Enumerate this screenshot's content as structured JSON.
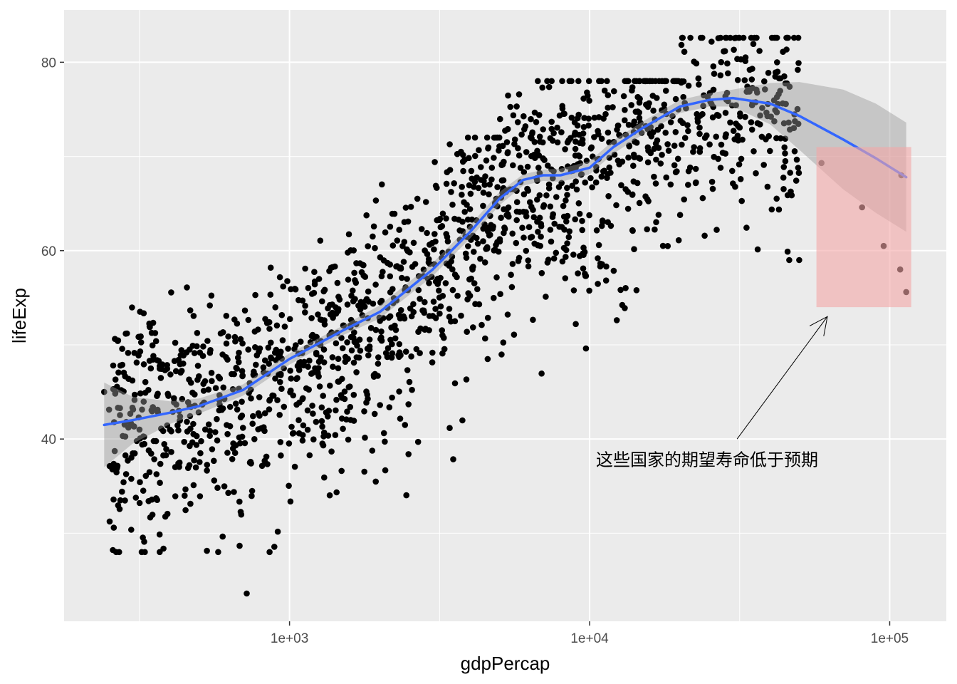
{
  "chart_data": {
    "type": "scatter",
    "title": "",
    "xlabel": "gdpPercap",
    "ylabel": "lifeExp",
    "x_scale": "log10",
    "xlim": [
      241.2,
      113523
    ],
    "ylim": [
      23.6,
      82.6
    ],
    "x_ticks": [
      {
        "value": 1000,
        "label": "1e+03"
      },
      {
        "value": 10000,
        "label": "1e+04"
      },
      {
        "value": 100000,
        "label": "1e+05"
      }
    ],
    "y_ticks": [
      {
        "value": 40,
        "label": "40"
      },
      {
        "value": 60,
        "label": "60"
      },
      {
        "value": 80,
        "label": "80"
      }
    ],
    "grid": true,
    "background": "#ebebeb",
    "colors": {
      "points": "#000000",
      "smooth_line": "#3366ff",
      "ribbon": "#999999",
      "highlight": "#f4a6a6"
    },
    "points_note": "gapminder scatter: 1704 points, approximated by the cluster summary below",
    "point_groups": [
      {
        "x_range": [
          250,
          1000
        ],
        "y_range": [
          28,
          62
        ],
        "count": 430
      },
      {
        "x_range": [
          1000,
          5000
        ],
        "y_range": [
          31,
          72
        ],
        "count": 560
      },
      {
        "x_range": [
          5000,
          20000
        ],
        "y_range": [
          43,
          78
        ],
        "count": 460
      },
      {
        "x_range": [
          20000,
          50000
        ],
        "y_range": [
          59,
          82.6
        ],
        "count": 230
      }
    ],
    "notable_points": [
      {
        "x": 113523,
        "y": 55.6
      },
      {
        "x": 108382,
        "y": 58.0
      },
      {
        "x": 95458,
        "y": 60.5
      },
      {
        "x": 80895,
        "y": 64.6
      },
      {
        "x": 59265,
        "y": 69.3
      },
      {
        "x": 109348,
        "y": 68.0
      },
      {
        "x": 241.2,
        "y": 45.0
      },
      {
        "x": 720,
        "y": 23.6
      },
      {
        "x": 36000,
        "y": 82.6
      }
    ],
    "smooth": {
      "x": [
        241.2,
        300,
        400,
        500,
        700,
        1000,
        1500,
        2000,
        3000,
        4000,
        5000,
        6000,
        7000,
        8000,
        10000,
        12000,
        15000,
        20000,
        25000,
        30000,
        40000,
        50000,
        70000,
        90000,
        113523
      ],
      "y": [
        41.5,
        42.0,
        42.8,
        43.5,
        45.2,
        48.5,
        51.5,
        53.5,
        58.0,
        62.0,
        65.5,
        67.5,
        68.0,
        68.0,
        68.8,
        71.0,
        73.0,
        75.3,
        76.0,
        76.2,
        75.6,
        74.3,
        71.8,
        69.8,
        67.8
      ],
      "ribbon_lo": [
        37.0,
        39.5,
        41.6,
        42.7,
        44.6,
        47.9,
        51.0,
        52.8,
        57.3,
        61.3,
        64.8,
        66.9,
        67.4,
        67.3,
        68.1,
        70.3,
        72.3,
        74.6,
        75.3,
        75.3,
        73.4,
        70.7,
        66.5,
        64.0,
        62.0
      ],
      "ribbon_hi": [
        46.0,
        44.5,
        44.0,
        44.3,
        45.8,
        49.1,
        52.0,
        54.2,
        58.7,
        62.7,
        66.2,
        68.1,
        68.6,
        68.7,
        69.5,
        71.7,
        73.7,
        76.0,
        76.7,
        77.1,
        77.8,
        77.9,
        77.1,
        75.6,
        73.6
      ]
    },
    "highlight_box": {
      "x": [
        57000,
        118000
      ],
      "y": [
        54,
        71
      ]
    },
    "annotation": {
      "text": "这些国家的期望寿命低于预期",
      "x": 10500,
      "y": 37.8,
      "arrow_from": [
        31000,
        40.0
      ],
      "arrow_to": [
        62000,
        53.0
      ]
    }
  }
}
